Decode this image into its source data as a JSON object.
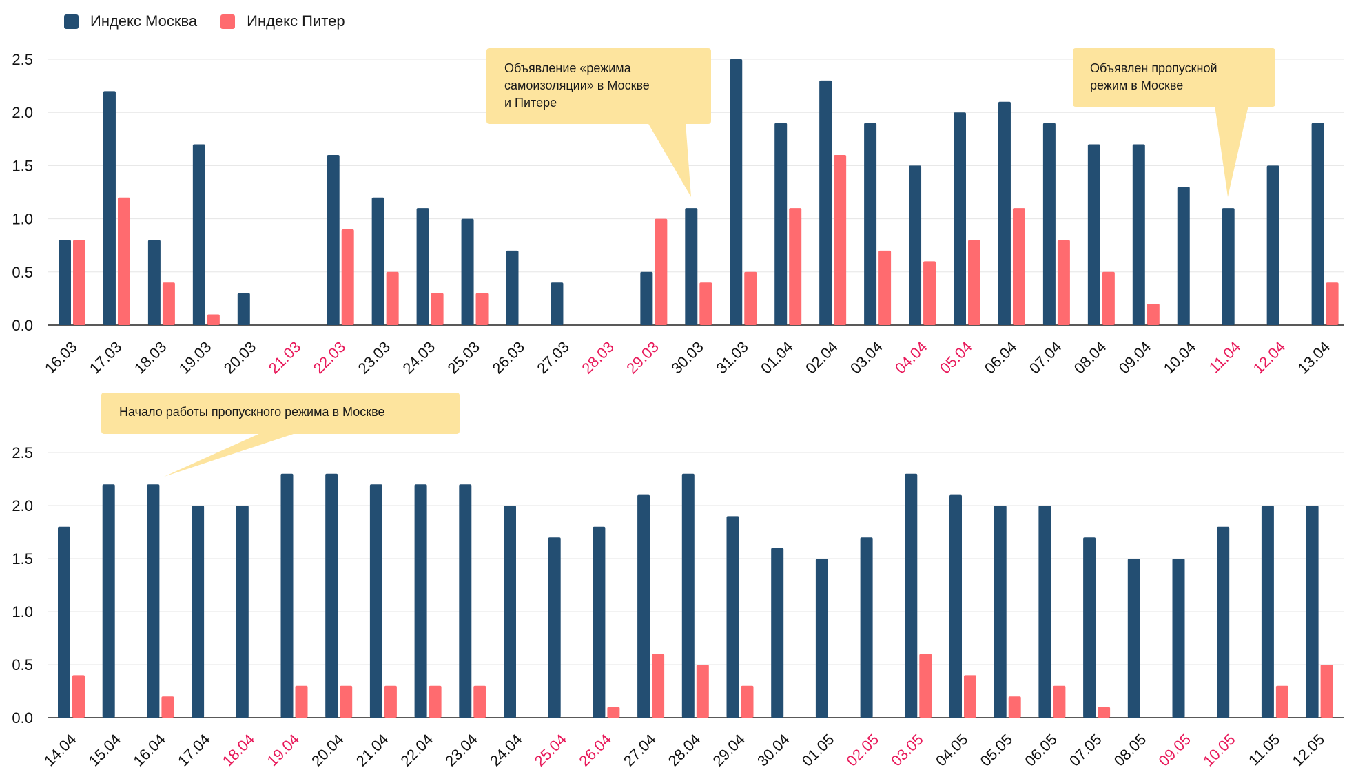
{
  "legend": {
    "series_a": "Индекс Москва",
    "series_b": "Индекс Питер"
  },
  "colors": {
    "moscow": "#234e72",
    "piter": "#ff6b6f",
    "weekend_label": "#e8195a",
    "weekday_label": "#111111",
    "grid": "#e5e5e5",
    "callout": "#fde49e"
  },
  "callouts": {
    "top_left": "Объявление «режима\nсамоизоляции» в Москве\nи Питере",
    "top_right": "Объявлен пропускной\nрежим в Москве",
    "bottom": "Начало работы пропускного режима в Москве"
  },
  "chart_data": [
    {
      "type": "bar",
      "categories": [
        "16.03",
        "17.03",
        "18.03",
        "19.03",
        "20.03",
        "21.03",
        "22.03",
        "23.03",
        "24.03",
        "25.03",
        "26.03",
        "27.03",
        "28.03",
        "29.03",
        "30.03",
        "31.03",
        "01.04",
        "02.04",
        "03.04",
        "04.04",
        "05.04",
        "06.04",
        "07.04",
        "08.04",
        "09.04",
        "10.04",
        "11.04",
        "12.04",
        "13.04"
      ],
      "highlighted_categories": [
        "21.03",
        "22.03",
        "28.03",
        "29.03",
        "04.04",
        "05.04",
        "11.04",
        "12.04"
      ],
      "series": [
        {
          "name": "Индекс Москва",
          "values": [
            0.8,
            2.2,
            0.8,
            1.7,
            0.3,
            0,
            1.6,
            1.2,
            1.1,
            1.0,
            0.7,
            0.4,
            0,
            0.5,
            1.1,
            2.5,
            1.9,
            2.3,
            1.9,
            1.5,
            2.0,
            2.1,
            1.9,
            1.7,
            1.7,
            1.3,
            1.1,
            1.5,
            1.9
          ]
        },
        {
          "name": "Индекс Питер",
          "values": [
            0.8,
            1.2,
            0.4,
            0.1,
            0,
            0,
            0.9,
            0.5,
            0.3,
            0.3,
            0,
            0,
            0,
            1.0,
            0.4,
            0.5,
            1.1,
            1.6,
            0.7,
            0.6,
            0.8,
            1.1,
            0.8,
            0.5,
            0.2,
            0,
            0,
            0,
            0.4
          ]
        }
      ],
      "yticks": [
        "0.0",
        "0.5",
        "1.0",
        "1.5",
        "2.0",
        "2.5"
      ],
      "ylim": [
        0,
        2.5
      ],
      "grid": true,
      "legend_position": "top-left"
    },
    {
      "type": "bar",
      "categories": [
        "14.04",
        "15.04",
        "16.04",
        "17.04",
        "18.04",
        "19.04",
        "20.04",
        "21.04",
        "22.04",
        "23.04",
        "24.04",
        "25.04",
        "26.04",
        "27.04",
        "28.04",
        "29.04",
        "30.04",
        "01.05",
        "02.05",
        "03.05",
        "04.05",
        "05.05",
        "06.05",
        "07.05",
        "08.05",
        "09.05",
        "10.05",
        "11.05",
        "12.05"
      ],
      "highlighted_categories": [
        "18.04",
        "19.04",
        "25.04",
        "26.04",
        "02.05",
        "03.05",
        "09.05",
        "10.05"
      ],
      "series": [
        {
          "name": "Индекс Москва",
          "values": [
            1.8,
            2.2,
            2.2,
            2.0,
            2.0,
            2.3,
            2.3,
            2.2,
            2.2,
            2.2,
            2.0,
            1.7,
            1.8,
            2.1,
            2.3,
            1.9,
            1.6,
            1.5,
            1.7,
            2.3,
            2.1,
            2.0,
            2.0,
            1.7,
            1.5,
            1.5,
            1.8,
            2.0,
            2.0
          ]
        },
        {
          "name": "Индекс Питер",
          "values": [
            0.4,
            0,
            0.2,
            0,
            0,
            0.3,
            0.3,
            0.3,
            0.3,
            0.3,
            0,
            0,
            0.1,
            0.6,
            0.5,
            0.3,
            0,
            0,
            0,
            0.6,
            0.4,
            0.2,
            0.3,
            0.1,
            0,
            0,
            0,
            0.3,
            0.5
          ]
        }
      ],
      "yticks": [
        "0.0",
        "0.5",
        "1.0",
        "1.5",
        "2.0",
        "2.5"
      ],
      "ylim": [
        0,
        2.5
      ],
      "grid": true
    }
  ]
}
